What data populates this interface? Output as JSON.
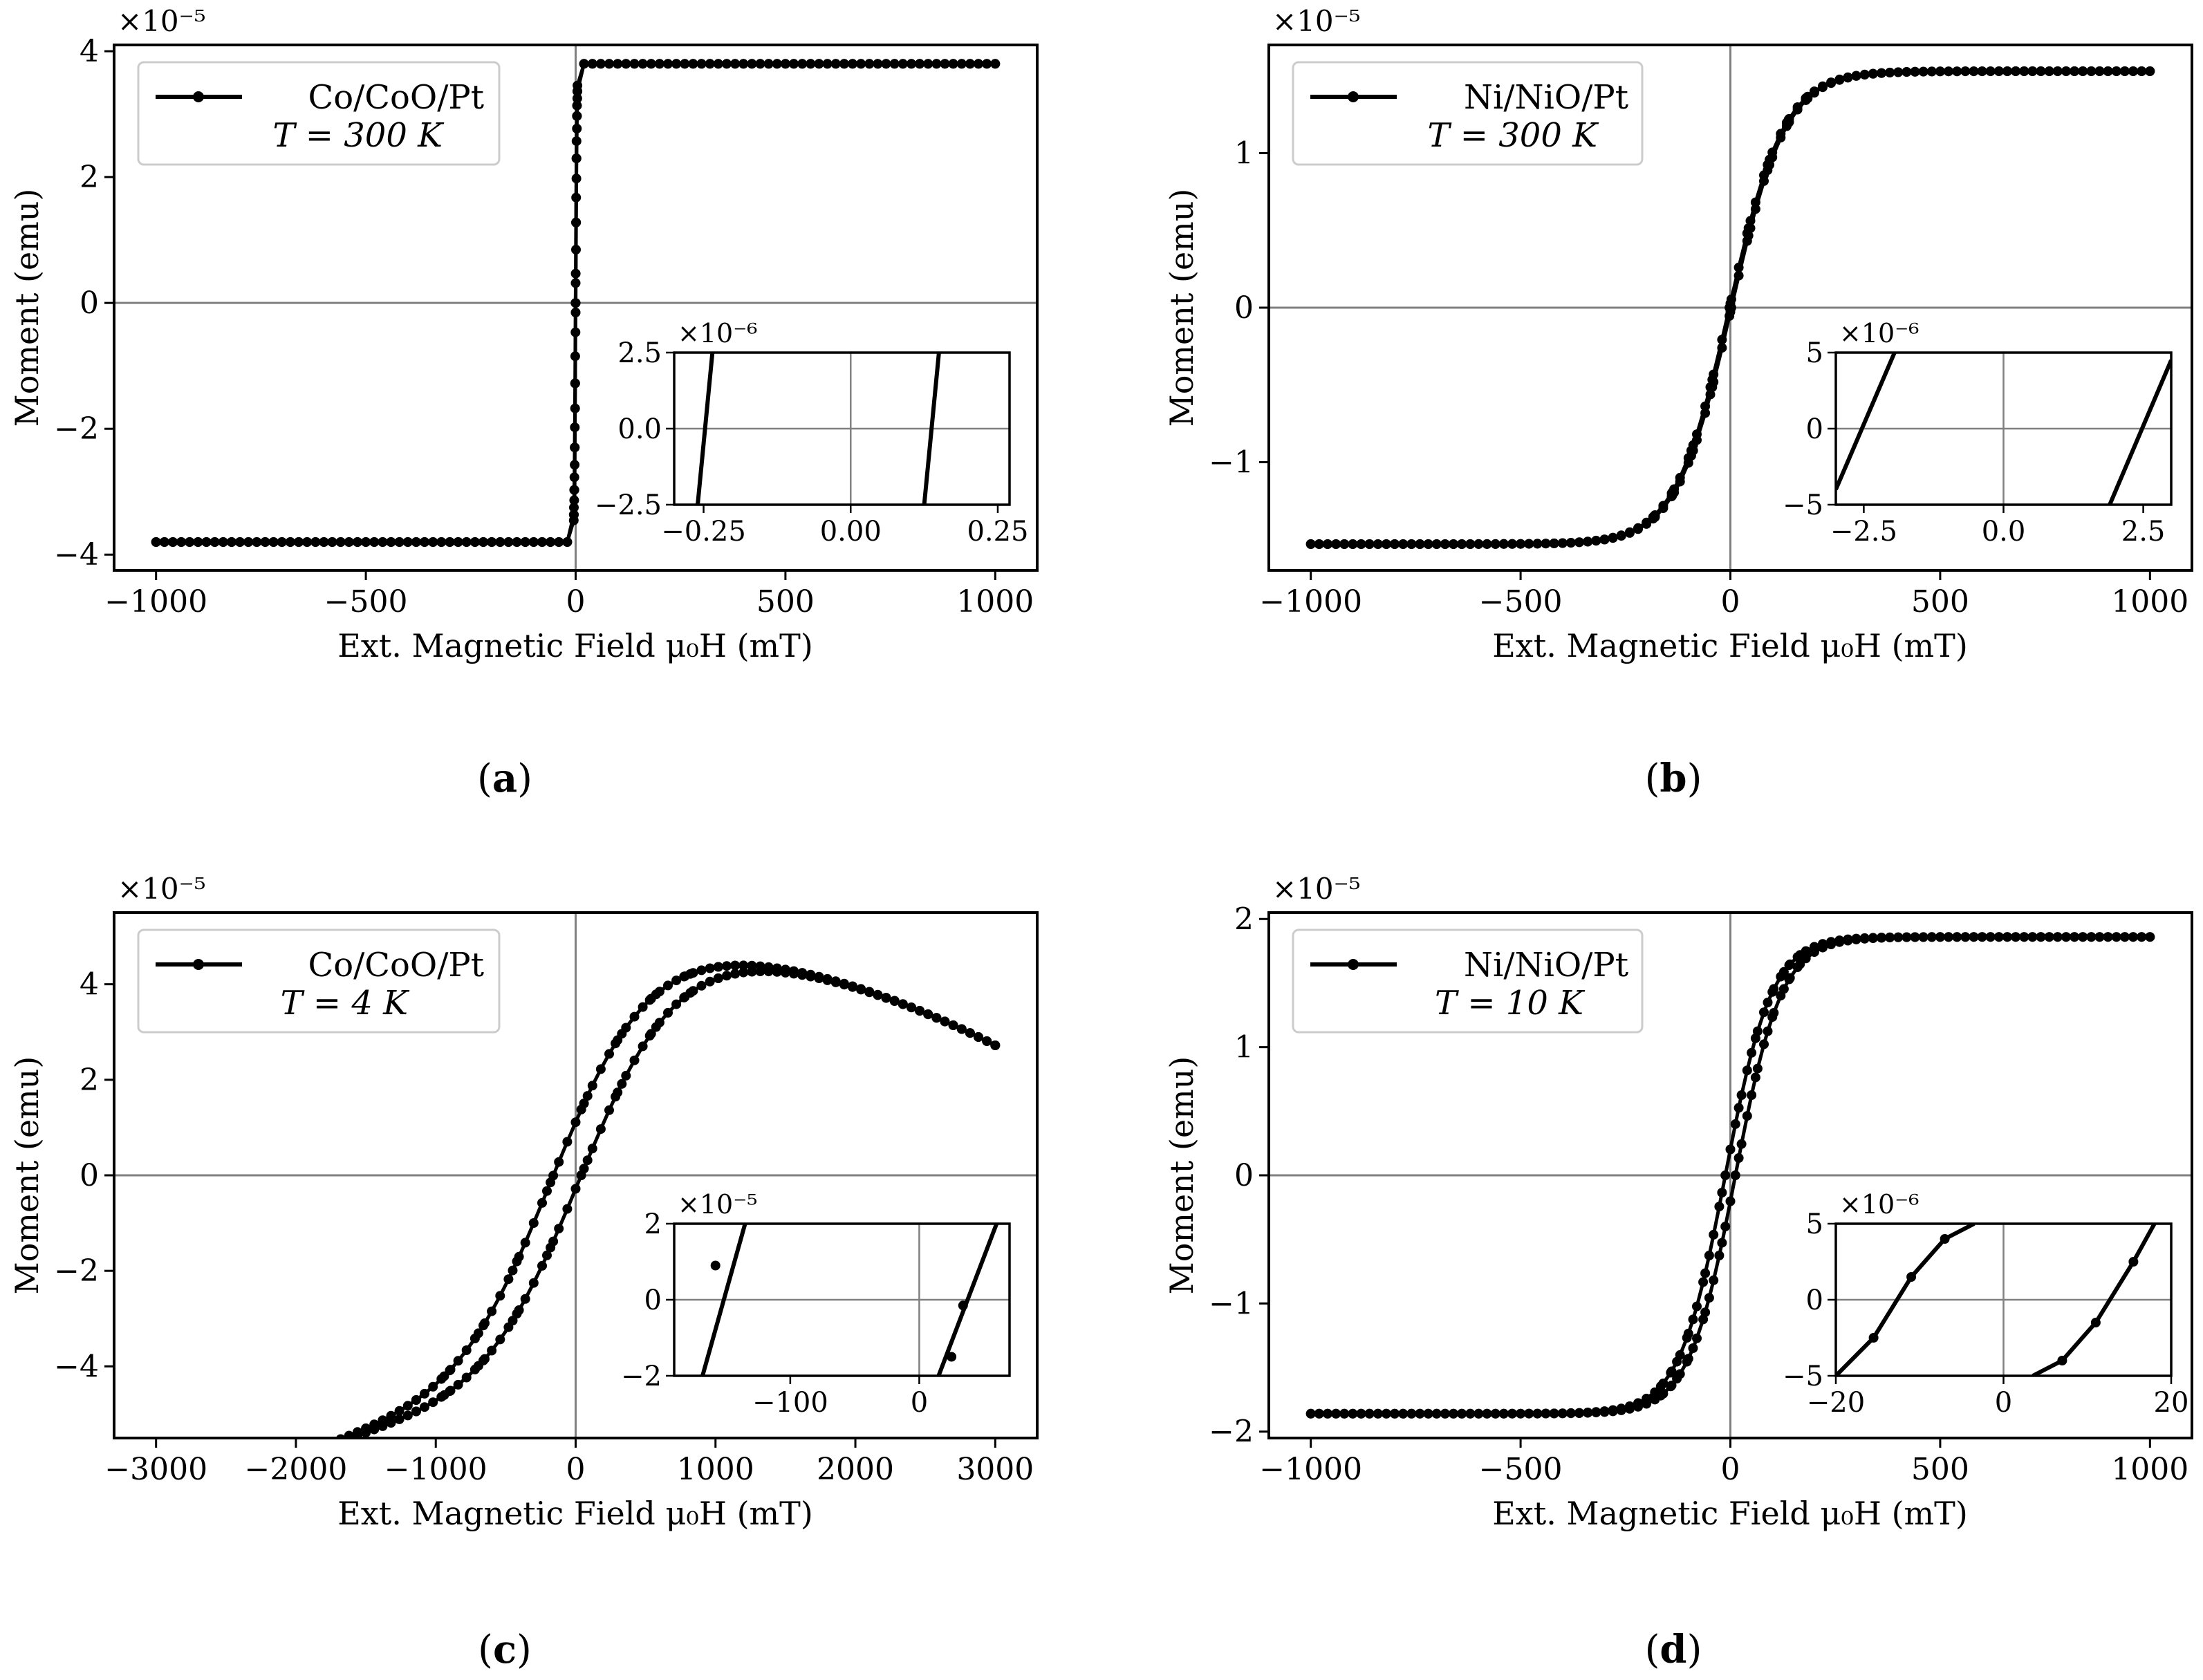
{
  "figure": {
    "x_axis_label": "Ext. Magnetic Field μ₀H (mT)",
    "y_axis_label": "Moment (emu)"
  },
  "chart_data": [
    {
      "type": "line",
      "panel": "a",
      "caption_label": "a",
      "legend": {
        "series_name": "Co/CoO/Pt",
        "temperature": "T = 300 K",
        "placement": "top-left"
      },
      "xlabel": "Ext. Magnetic Field μ₀H (mT)",
      "ylabel": "Moment (emu)",
      "xlim": [
        -1100,
        1100
      ],
      "ylim": [
        -4.25,
        4.1
      ],
      "y_multiplier": "×10⁻⁵",
      "xticks": [
        -1000,
        -500,
        0,
        500,
        1000
      ],
      "xtick_labels": [
        "−1000",
        "−500",
        "0",
        "500",
        "1000"
      ],
      "yticks": [
        -4,
        -2,
        0,
        2,
        4
      ],
      "ytick_labels": [
        "−4",
        "−2",
        "0",
        "2",
        "4"
      ],
      "loop": {
        "Hmax": 1000,
        "Msat": 3.8,
        "Hc_up": 0.12,
        "Hc_down": -0.25,
        "Hs": 3,
        "nonlinear": 0
      },
      "inset": {
        "xlim": [
          -0.3,
          0.27
        ],
        "ylim": [
          -2.5,
          2.5
        ],
        "xticks": [
          -0.25,
          0,
          0.25
        ],
        "xtick_labels": [
          "−0.25",
          "0.00",
          "0.25"
        ],
        "yticks": [
          -2.5,
          0,
          2.5
        ],
        "ytick_labels": [
          "−2.5",
          "0.0",
          "2.5"
        ],
        "y_multiplier": "×10⁻⁶",
        "lines": [
          {
            "x": [
              -0.26,
              -0.235
            ],
            "y": [
              -2.5,
              2.5
            ]
          },
          {
            "x": [
              0.125,
              0.15
            ],
            "y": [
              -2.5,
              2.5
            ]
          }
        ],
        "points": []
      }
    },
    {
      "type": "line",
      "panel": "b",
      "caption_label": "b",
      "legend": {
        "series_name": "Ni/NiO/Pt",
        "temperature": "T = 300 K",
        "placement": "top-left"
      },
      "xlabel": "Ext. Magnetic Field μ₀H (mT)",
      "ylabel": "Moment (emu)",
      "xlim": [
        -1100,
        1100
      ],
      "ylim": [
        -1.7,
        1.7
      ],
      "y_multiplier": "×10⁻⁵",
      "xticks": [
        -1000,
        -500,
        0,
        500,
        1000
      ],
      "xtick_labels": [
        "−1000",
        "−500",
        "0",
        "500",
        "1000"
      ],
      "yticks": [
        -1,
        0,
        1
      ],
      "ytick_labels": [
        "−1",
        "0",
        "1"
      ],
      "loop": {
        "Hmax": 1000,
        "Msat": 1.53,
        "Hc_up": 2.3,
        "Hc_down": -2.3,
        "Hs": 130,
        "nonlinear": 7e-05
      },
      "inset": {
        "xlim": [
          -3,
          3
        ],
        "ylim": [
          -5,
          5
        ],
        "xticks": [
          -2.5,
          0,
          2.5
        ],
        "xtick_labels": [
          "−2.5",
          "0.0",
          "2.5"
        ],
        "yticks": [
          -5,
          0,
          5
        ],
        "ytick_labels": [
          "−5",
          "0",
          "5"
        ],
        "y_multiplier": "×10⁻⁶",
        "lines": [
          {
            "x": [
              -3.0,
              -1.95
            ],
            "y": [
              -4.0,
              5.0
            ]
          },
          {
            "x": [
              1.9,
              3.0
            ],
            "y": [
              -5.0,
              4.5
            ]
          }
        ],
        "points": []
      }
    },
    {
      "type": "line",
      "panel": "c",
      "caption_label": "c",
      "legend": {
        "series_name": "Co/CoO/Pt",
        "temperature": "T = 4 K",
        "placement": "top-left"
      },
      "xlabel": "Ext. Magnetic Field μ₀H (mT)",
      "ylabel": "Moment (emu)",
      "xlim": [
        -3300,
        3300
      ],
      "ylim": [
        -5.5,
        5.5
      ],
      "y_multiplier": "×10⁻⁵",
      "xticks": [
        -3000,
        -2000,
        -1000,
        0,
        1000,
        2000,
        3000
      ],
      "xtick_labels": [
        "−3000",
        "−2000",
        "−1000",
        "0",
        "1000",
        "2000",
        "3000"
      ],
      "yticks": [
        -4,
        -2,
        0,
        2,
        4
      ],
      "ytick_labels": [
        "−4",
        "−2",
        "0",
        "2",
        "4"
      ],
      "loop": {
        "Hmax": 3000,
        "Msat": 4.95,
        "Hc_up": 40,
        "Hc_down": -160,
        "Hs": 700,
        "nonlinear": 0.05
      },
      "inset": {
        "xlim": [
          -190,
          70
        ],
        "ylim": [
          -2,
          2
        ],
        "xticks": [
          -100,
          0
        ],
        "xtick_labels": [
          "−100",
          "0"
        ],
        "yticks": [
          -2,
          0,
          2
        ],
        "ytick_labels": [
          "−2",
          "0",
          "2"
        ],
        "y_multiplier": "×10⁻⁵",
        "lines": [
          {
            "x": [
              -168,
              -135
            ],
            "y": [
              -2.0,
              2.0
            ]
          },
          {
            "x": [
              15,
              60
            ],
            "y": [
              -2.0,
              2.0
            ]
          }
        ],
        "points": [
          {
            "x": -158,
            "y": 0.9
          },
          {
            "x": 34,
            "y": -0.15
          },
          {
            "x": 25,
            "y": -1.5
          }
        ]
      }
    },
    {
      "type": "line",
      "panel": "d",
      "caption_label": "d",
      "legend": {
        "series_name": "Ni/NiO/Pt",
        "temperature": "T = 10 K",
        "placement": "top-left"
      },
      "xlabel": "Ext. Magnetic Field μ₀H (mT)",
      "ylabel": "Moment (emu)",
      "xlim": [
        -1100,
        1100
      ],
      "ylim": [
        -2.05,
        2.05
      ],
      "y_multiplier": "×10⁻⁵",
      "xticks": [
        -1000,
        -500,
        0,
        500,
        1000
      ],
      "xtick_labels": [
        "−1000",
        "−500",
        "0",
        "500",
        "1000"
      ],
      "yticks": [
        -2,
        -1,
        0,
        1,
        2
      ],
      "ytick_labels": [
        "−2",
        "−1",
        "0",
        "1",
        "2"
      ],
      "loop": {
        "Hmax": 1000,
        "Msat": 1.86,
        "Hc_up": 12,
        "Hc_down": -12,
        "Hs": 110,
        "nonlinear": 4e-05
      },
      "inset": {
        "xlim": [
          -20,
          20
        ],
        "ylim": [
          -5,
          5
        ],
        "xticks": [
          -20,
          0,
          20
        ],
        "xtick_labels": [
          "−20",
          "0",
          "20"
        ],
        "yticks": [
          -5,
          0,
          5
        ],
        "ytick_labels": [
          "−5",
          "0",
          "5"
        ],
        "y_multiplier": "×10⁻⁶",
        "lines": [
          {
            "x": [
              -20,
              -15.5,
              -11,
              -7,
              -3.5
            ],
            "y": [
              -5,
              -2.5,
              1.5,
              4.0,
              5.0
            ]
          },
          {
            "x": [
              3.5,
              7,
              11,
              15.5,
              18
            ],
            "y": [
              -5,
              -4.0,
              -1.5,
              2.5,
              5
            ]
          }
        ],
        "points": [
          {
            "x": -15.5,
            "y": -2.5
          },
          {
            "x": -11,
            "y": 1.5
          },
          {
            "x": -7,
            "y": 4.0
          },
          {
            "x": 7,
            "y": -4.0
          },
          {
            "x": 11,
            "y": -1.5
          },
          {
            "x": 15.5,
            "y": 2.5
          }
        ]
      }
    }
  ]
}
